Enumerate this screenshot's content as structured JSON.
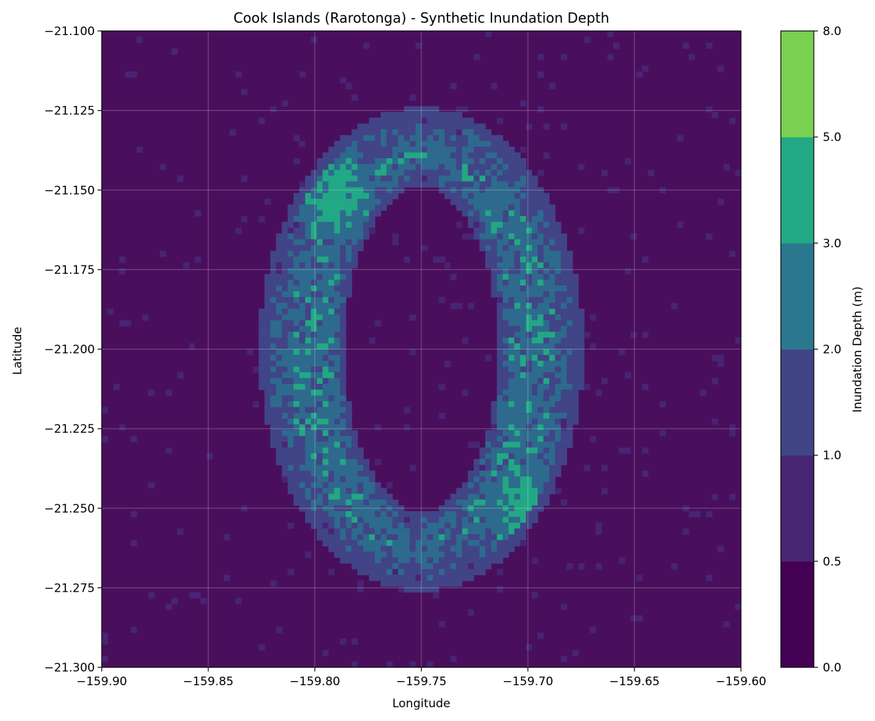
{
  "chart_data": {
    "type": "heatmap",
    "subtype": "filled-contour",
    "title": "Cook Islands (Rarotonga) - Synthetic Inundation Depth",
    "xlabel": "Longitude",
    "ylabel": "Latitude",
    "xlim": [
      -159.9,
      -159.6
    ],
    "ylim": [
      -21.3,
      -21.1
    ],
    "xticks": [
      -159.9,
      -159.85,
      -159.8,
      -159.75,
      -159.7,
      -159.65,
      -159.6
    ],
    "xtick_labels": [
      "−159.90",
      "−159.85",
      "−159.80",
      "−159.75",
      "−159.70",
      "−159.65",
      "−159.60"
    ],
    "yticks": [
      -21.1,
      -21.125,
      -21.15,
      -21.175,
      -21.2,
      -21.225,
      -21.25,
      -21.275,
      -21.3
    ],
    "ytick_labels": [
      "−21.100",
      "−21.125",
      "−21.150",
      "−21.175",
      "−21.200",
      "−21.225",
      "−21.250",
      "−21.275",
      "−21.300"
    ],
    "grid": true,
    "ring": {
      "center": [
        -159.75,
        -21.2
      ],
      "outer_semi_axes": [
        0.076,
        0.076
      ],
      "inner_semi_axes": [
        0.036,
        0.051
      ]
    },
    "hotspots": [
      {
        "center": [
          -159.79,
          -21.152
        ],
        "depth": 3.5
      },
      {
        "center": [
          -159.701,
          -21.25
        ],
        "depth": 3.5
      }
    ],
    "colorbar": {
      "label": "Inundation Depth (m)",
      "levels": [
        0.0,
        0.5,
        1.0,
        2.0,
        3.0,
        5.0,
        8.0
      ],
      "level_labels": [
        "0.0",
        "0.5",
        "1.0",
        "2.0",
        "3.0",
        "5.0",
        "8.0"
      ],
      "colors": [
        "#440154",
        "#482475",
        "#414487",
        "#2a788e",
        "#22a884",
        "#7ad151"
      ],
      "plot_colors": [
        "#4a0f5c",
        "#482475",
        "#414487",
        "#2e6a8d",
        "#22a884",
        "#7ad151"
      ]
    }
  }
}
